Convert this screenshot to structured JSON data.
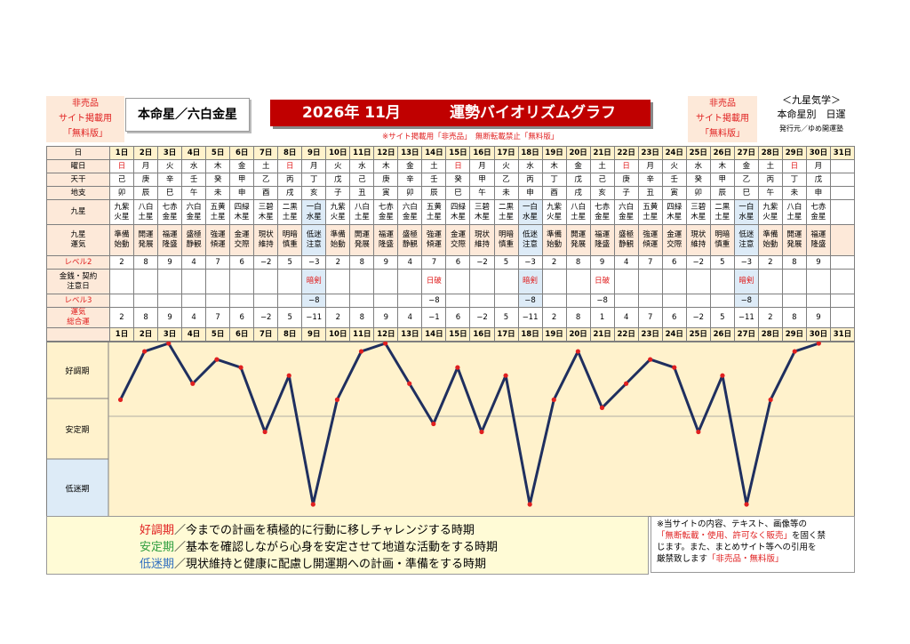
{
  "header": {
    "left_badge": [
      "非売品",
      "サイト掲載用",
      "「無料版」"
    ],
    "honmei": "本命星／六白金星",
    "title_year": "2026年 11月",
    "title_main": "運勢バイオリズムグラフ",
    "notice": "※サイト掲載用「非売品」　無断転載禁止「無料版」",
    "right_badge": [
      "非売品",
      "サイト掲載用",
      "「無料版」"
    ],
    "kyusei_title": "＜九星気学＞",
    "kyusei_sub": "本命星別　日運",
    "publisher": "発行元／ゆめ開運塾"
  },
  "labels": {
    "day": "日",
    "weekday": "曜日",
    "tenkan": "天干",
    "chishi": "地支",
    "kyusei": "九星",
    "unki": "九星\n運気",
    "level2": "レベル2",
    "money": "金銭・契約\n注意日",
    "level3": "レベル3",
    "total": "運気\n総合運",
    "band_good": "好調期",
    "band_stable": "安定期",
    "band_low": "低迷期"
  },
  "days": [
    "1日",
    "2日",
    "3日",
    "4日",
    "5日",
    "6日",
    "7日",
    "8日",
    "9日",
    "10日",
    "11日",
    "12日",
    "13日",
    "14日",
    "15日",
    "16日",
    "17日",
    "18日",
    "19日",
    "20日",
    "21日",
    "22日",
    "23日",
    "24日",
    "25日",
    "26日",
    "27日",
    "28日",
    "29日",
    "30日",
    "31日"
  ],
  "weekdays": [
    "日",
    "月",
    "火",
    "水",
    "木",
    "金",
    "土",
    "日",
    "月",
    "火",
    "水",
    "木",
    "金",
    "土",
    "日",
    "月",
    "火",
    "水",
    "木",
    "金",
    "土",
    "日",
    "月",
    "火",
    "水",
    "木",
    "金",
    "土",
    "日",
    "月",
    ""
  ],
  "tenkan": [
    "己",
    "庚",
    "辛",
    "壬",
    "癸",
    "甲",
    "乙",
    "丙",
    "丁",
    "戊",
    "己",
    "庚",
    "辛",
    "壬",
    "癸",
    "甲",
    "乙",
    "丙",
    "丁",
    "戊",
    "己",
    "庚",
    "辛",
    "壬",
    "癸",
    "甲",
    "乙",
    "丙",
    "丁",
    "戊",
    ""
  ],
  "chishi": [
    "卯",
    "辰",
    "巳",
    "午",
    "未",
    "申",
    "酉",
    "戌",
    "亥",
    "子",
    "丑",
    "寅",
    "卯",
    "辰",
    "巳",
    "午",
    "未",
    "申",
    "酉",
    "戌",
    "亥",
    "子",
    "丑",
    "寅",
    "卯",
    "辰",
    "巳",
    "午",
    "未",
    "申",
    ""
  ],
  "kyusei": [
    [
      "九紫",
      "火星"
    ],
    [
      "八白",
      "土星"
    ],
    [
      "七赤",
      "金星"
    ],
    [
      "六白",
      "金星"
    ],
    [
      "五黄",
      "土星"
    ],
    [
      "四緑",
      "木星"
    ],
    [
      "三碧",
      "木星"
    ],
    [
      "二黒",
      "土星"
    ],
    [
      "一白",
      "水星"
    ],
    [
      "九紫",
      "火星"
    ],
    [
      "八白",
      "土星"
    ],
    [
      "七赤",
      "金星"
    ],
    [
      "六白",
      "金星"
    ],
    [
      "五黄",
      "土星"
    ],
    [
      "四緑",
      "木星"
    ],
    [
      "三碧",
      "木星"
    ],
    [
      "二黒",
      "土星"
    ],
    [
      "一白",
      "水星"
    ],
    [
      "九紫",
      "火星"
    ],
    [
      "八白",
      "土星"
    ],
    [
      "七赤",
      "金星"
    ],
    [
      "六白",
      "金星"
    ],
    [
      "五黄",
      "土星"
    ],
    [
      "四緑",
      "木星"
    ],
    [
      "三碧",
      "木星"
    ],
    [
      "二黒",
      "土星"
    ],
    [
      "一白",
      "水星"
    ],
    [
      "九紫",
      "火星"
    ],
    [
      "八白",
      "土星"
    ],
    [
      "七赤",
      "金星"
    ],
    [
      "",
      ""
    ]
  ],
  "unki": [
    [
      "準備",
      "始動"
    ],
    [
      "開運",
      "発展"
    ],
    [
      "福運",
      "隆盛"
    ],
    [
      "盛極",
      "静観"
    ],
    [
      "強運",
      "傾運"
    ],
    [
      "金運",
      "交際"
    ],
    [
      "現状",
      "維持"
    ],
    [
      "明暗",
      "慎重"
    ],
    [
      "低迷",
      "注意"
    ],
    [
      "準備",
      "始動"
    ],
    [
      "開運",
      "発展"
    ],
    [
      "福運",
      "隆盛"
    ],
    [
      "盛極",
      "静観"
    ],
    [
      "強運",
      "傾運"
    ],
    [
      "金運",
      "交際"
    ],
    [
      "現状",
      "維持"
    ],
    [
      "明暗",
      "慎重"
    ],
    [
      "低迷",
      "注意"
    ],
    [
      "準備",
      "始動"
    ],
    [
      "開運",
      "発展"
    ],
    [
      "福運",
      "隆盛"
    ],
    [
      "盛極",
      "静観"
    ],
    [
      "強運",
      "傾運"
    ],
    [
      "金運",
      "交際"
    ],
    [
      "現状",
      "維持"
    ],
    [
      "明暗",
      "慎重"
    ],
    [
      "低迷",
      "注意"
    ],
    [
      "準備",
      "始動"
    ],
    [
      "開運",
      "発展"
    ],
    [
      "福運",
      "隆盛"
    ],
    [
      "",
      ""
    ]
  ],
  "level2": [
    "2",
    "8",
    "9",
    "4",
    "7",
    "6",
    "−2",
    "5",
    "−3",
    "2",
    "8",
    "9",
    "4",
    "7",
    "6",
    "−2",
    "5",
    "−3",
    "2",
    "8",
    "9",
    "4",
    "7",
    "6",
    "−2",
    "5",
    "−3",
    "2",
    "8",
    "9",
    ""
  ],
  "money": [
    "",
    "",
    "",
    "",
    "",
    "",
    "",
    "",
    "暗剣",
    "",
    "",
    "",
    "",
    "日破",
    "",
    "",
    "",
    "暗剣",
    "",
    "",
    "日破",
    "",
    "",
    "",
    "",
    "",
    "暗剣",
    "",
    "",
    "",
    ""
  ],
  "level3": [
    "",
    "",
    "",
    "",
    "",
    "",
    "",
    "",
    "−8",
    "",
    "",
    "",
    "",
    "−8",
    "",
    "",
    "",
    "−8",
    "",
    "",
    "−8",
    "",
    "",
    "",
    "",
    "",
    "−8",
    "",
    "",
    "",
    ""
  ],
  "total": [
    "2",
    "8",
    "9",
    "4",
    "7",
    "6",
    "−2",
    "5",
    "−11",
    "2",
    "8",
    "9",
    "4",
    "−1",
    "6",
    "−2",
    "5",
    "−11",
    "2",
    "8",
    "1",
    "4",
    "7",
    "6",
    "−2",
    "5",
    "−11",
    "2",
    "8",
    "9",
    ""
  ],
  "chart_data": {
    "type": "line",
    "x": [
      "1日",
      "2日",
      "3日",
      "4日",
      "5日",
      "6日",
      "7日",
      "8日",
      "9日",
      "10日",
      "11日",
      "12日",
      "13日",
      "14日",
      "15日",
      "16日",
      "17日",
      "18日",
      "19日",
      "20日",
      "21日",
      "22日",
      "23日",
      "24日",
      "25日",
      "26日",
      "27日",
      "28日",
      "29日",
      "30日"
    ],
    "series": [
      {
        "values": [
          2,
          8,
          9,
          4,
          7,
          6,
          -2,
          5,
          -11,
          2,
          8,
          9,
          4,
          -1,
          6,
          -2,
          5,
          -11,
          2,
          8,
          1,
          4,
          7,
          6,
          -2,
          5,
          -11,
          2,
          8,
          9
        ]
      }
    ],
    "ylim": [
      -11,
      9
    ],
    "bands": [
      "好調期",
      "安定期",
      "低迷期"
    ],
    "line_color": "#1f2f5f",
    "marker_color": "#e02020",
    "band_colors": [
      "#fff2cc",
      "#fff2cc",
      "#ddebf7"
    ]
  },
  "legend": {
    "good_label": "好調期",
    "good_text": "／今までの計画を積極的に行動に移しチャレンジする時期",
    "stable_label": "安定期",
    "stable_text": "／基本を確認しながら心身を安定させて地道な活動をする時期",
    "low_label": "低迷期",
    "low_text": "／現状維持と健康に配慮し開運期への計画・準備をする時期"
  },
  "copyright": {
    "line1": "※当サイトの内容、テキスト、画像等の",
    "line2_red": "「無断転載・使用、許可なく販売」",
    "line2_rest": "を固く禁",
    "line3": "じます。また、まとめサイト等への引用を",
    "line4": "厳禁致します",
    "line4_red": "「非売品・無料版」"
  }
}
